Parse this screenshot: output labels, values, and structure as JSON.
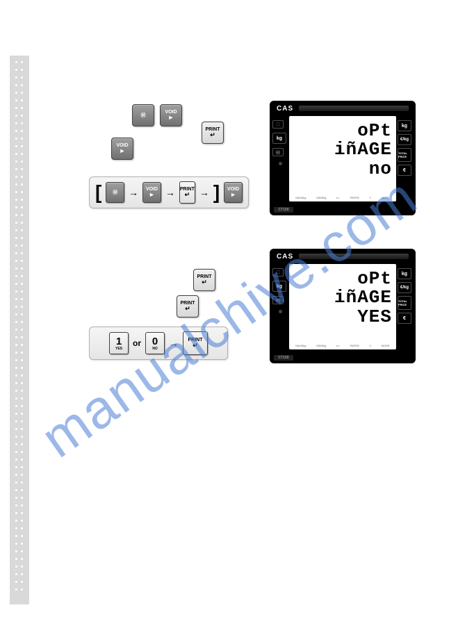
{
  "watermark": "manualchive.com",
  "buttons": {
    "m": {
      "main": "Ⓜ",
      "sub": ""
    },
    "void": {
      "main": "VOID",
      "arrow": "►"
    },
    "print": {
      "main": "PRINT",
      "arrow": "↵"
    },
    "one": {
      "num": "1",
      "sub": "YES"
    },
    "zero": {
      "num": "0",
      "sub": "NO"
    },
    "or": "or"
  },
  "sequence1": {
    "items": [
      "m",
      "void",
      "print",
      "void"
    ]
  },
  "lcd": {
    "brand": "CAS",
    "model": "CT100",
    "left_units": [
      "kg"
    ],
    "left_icons": [
      "⊞",
      "●"
    ],
    "right_units": [
      "kg",
      "€/kg",
      "TOTAL PRICE",
      "€"
    ],
    "footer": [
      "MAX5kg",
      "MIN50g",
      "e=",
      "PAPER",
      "2",
      "MODE"
    ]
  },
  "display1": {
    "line1": "oPt",
    "line2": "iñAGE",
    "line3": "no"
  },
  "display2": {
    "line1": "oPt",
    "line2": "iñAGE",
    "line3": "YES"
  }
}
